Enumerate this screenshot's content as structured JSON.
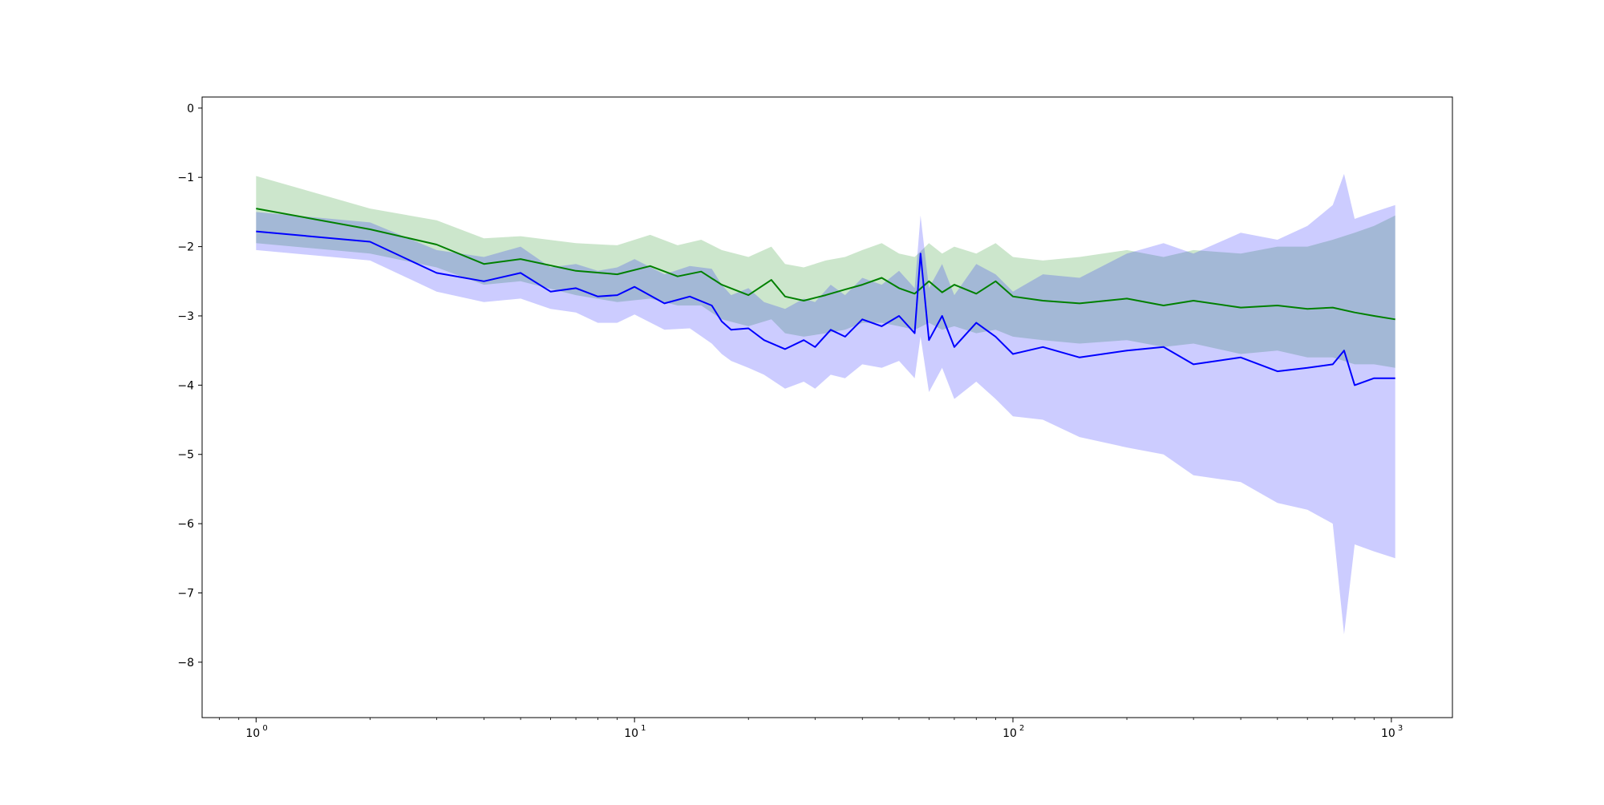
{
  "chart_data": {
    "type": "line",
    "title": "",
    "xlabel": "",
    "ylabel": "",
    "xscale": "log",
    "xlim": [
      0.72,
      1450
    ],
    "ylim": [
      -8.8,
      0.16
    ],
    "grid": false,
    "legend": "none",
    "x_ticks": [
      {
        "value": 1,
        "label": "10",
        "exp": "0"
      },
      {
        "value": 10,
        "label": "10",
        "exp": "1"
      },
      {
        "value": 100,
        "label": "10",
        "exp": "2"
      },
      {
        "value": 1000,
        "label": "10",
        "exp": "3"
      }
    ],
    "y_ticks": [
      0,
      -1,
      -2,
      -3,
      -4,
      -5,
      -6,
      -7,
      -8
    ],
    "y_tick_labels": [
      "0",
      "−1",
      "−2",
      "−3",
      "−4",
      "−5",
      "−6",
      "−7",
      "−8"
    ],
    "series": [
      {
        "color": "#008000",
        "band_color": "#008000",
        "band_opacity": 0.2,
        "x": [
          1,
          2,
          3,
          4,
          5,
          7,
          9,
          11,
          13,
          15,
          17,
          20,
          23,
          25,
          28,
          32,
          36,
          40,
          45,
          50,
          55,
          60,
          65,
          70,
          80,
          90,
          100,
          120,
          150,
          200,
          250,
          300,
          400,
          500,
          600,
          700,
          800,
          900,
          1024
        ],
        "y": [
          -1.45,
          -1.75,
          -1.97,
          -2.25,
          -2.18,
          -2.35,
          -2.4,
          -2.28,
          -2.43,
          -2.36,
          -2.55,
          -2.7,
          -2.48,
          -2.72,
          -2.78,
          -2.7,
          -2.62,
          -2.55,
          -2.45,
          -2.6,
          -2.68,
          -2.5,
          -2.66,
          -2.55,
          -2.68,
          -2.5,
          -2.72,
          -2.78,
          -2.82,
          -2.75,
          -2.85,
          -2.78,
          -2.88,
          -2.85,
          -2.9,
          -2.88,
          -2.95,
          -3.0,
          -3.05
        ],
        "lower": [
          -1.95,
          -2.1,
          -2.3,
          -2.55,
          -2.5,
          -2.7,
          -2.8,
          -2.75,
          -2.85,
          -2.85,
          -3.05,
          -3.15,
          -3.05,
          -3.25,
          -3.3,
          -3.25,
          -3.2,
          -3.1,
          -3.1,
          -3.15,
          -3.2,
          -3.1,
          -3.2,
          -3.15,
          -3.25,
          -3.2,
          -3.3,
          -3.35,
          -3.4,
          -3.35,
          -3.45,
          -3.4,
          -3.55,
          -3.5,
          -3.6,
          -3.6,
          -3.7,
          -3.7,
          -3.75
        ],
        "upper": [
          -0.98,
          -1.45,
          -1.62,
          -1.88,
          -1.85,
          -1.95,
          -1.98,
          -1.83,
          -1.98,
          -1.9,
          -2.05,
          -2.15,
          -2.0,
          -2.25,
          -2.3,
          -2.2,
          -2.15,
          -2.05,
          -1.95,
          -2.1,
          -2.15,
          -1.95,
          -2.1,
          -2.0,
          -2.1,
          -1.95,
          -2.15,
          -2.2,
          -2.15,
          -2.05,
          -2.15,
          -2.05,
          -2.1,
          -2.0,
          -2.0,
          -1.9,
          -1.8,
          -1.7,
          -1.55
        ]
      },
      {
        "color": "#0000ff",
        "band_color": "#0000ff",
        "band_opacity": 0.2,
        "x": [
          1,
          2,
          3,
          4,
          5,
          6,
          7,
          8,
          9,
          10,
          12,
          14,
          16,
          17,
          18,
          20,
          22,
          25,
          28,
          30,
          33,
          36,
          40,
          45,
          50,
          55,
          57,
          60,
          65,
          70,
          80,
          90,
          100,
          120,
          150,
          200,
          250,
          300,
          400,
          500,
          600,
          700,
          750,
          800,
          900,
          1024
        ],
        "y": [
          -1.78,
          -1.93,
          -2.38,
          -2.5,
          -2.38,
          -2.65,
          -2.6,
          -2.72,
          -2.7,
          -2.58,
          -2.82,
          -2.72,
          -2.85,
          -3.08,
          -3.2,
          -3.18,
          -3.35,
          -3.48,
          -3.35,
          -3.45,
          -3.2,
          -3.3,
          -3.05,
          -3.15,
          -3.0,
          -3.25,
          -2.1,
          -3.35,
          -3.0,
          -3.45,
          -3.1,
          -3.3,
          -3.55,
          -3.45,
          -3.6,
          -3.5,
          -3.45,
          -3.7,
          -3.6,
          -3.8,
          -3.75,
          -3.7,
          -3.5,
          -4.0,
          -3.9,
          -3.9
        ],
        "lower": [
          -2.05,
          -2.2,
          -2.65,
          -2.8,
          -2.75,
          -2.9,
          -2.95,
          -3.1,
          -3.1,
          -2.98,
          -3.2,
          -3.18,
          -3.4,
          -3.55,
          -3.65,
          -3.75,
          -3.85,
          -4.05,
          -3.95,
          -4.05,
          -3.85,
          -3.9,
          -3.7,
          -3.75,
          -3.65,
          -3.9,
          -3.3,
          -4.1,
          -3.75,
          -4.2,
          -3.95,
          -4.2,
          -4.45,
          -4.5,
          -4.75,
          -4.9,
          -5.0,
          -5.3,
          -5.4,
          -5.7,
          -5.8,
          -6.0,
          -7.6,
          -6.3,
          -6.4,
          -6.5
        ],
        "upper": [
          -1.5,
          -1.65,
          -2.05,
          -2.15,
          -2.0,
          -2.3,
          -2.25,
          -2.35,
          -2.3,
          -2.18,
          -2.4,
          -2.28,
          -2.32,
          -2.55,
          -2.7,
          -2.6,
          -2.8,
          -2.9,
          -2.75,
          -2.8,
          -2.55,
          -2.7,
          -2.45,
          -2.55,
          -2.35,
          -2.6,
          -1.55,
          -2.6,
          -2.25,
          -2.7,
          -2.25,
          -2.4,
          -2.65,
          -2.4,
          -2.45,
          -2.1,
          -1.95,
          -2.1,
          -1.8,
          -1.9,
          -1.7,
          -1.4,
          -0.95,
          -1.6,
          -1.5,
          -1.4
        ]
      }
    ]
  }
}
